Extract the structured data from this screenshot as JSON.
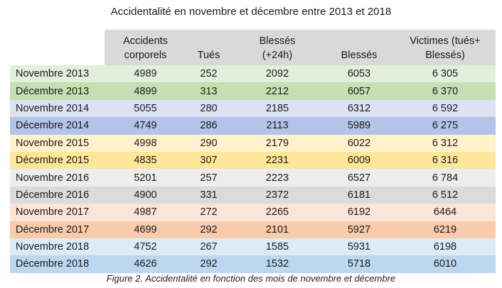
{
  "title": "Accidentalité en novembre et décembre entre 2013 et 2018",
  "headers": {
    "accidents": [
      "Accidents",
      "corporels"
    ],
    "tues": "Tués",
    "blesses24": [
      "Blessés",
      "(+24h)"
    ],
    "blesses": "Blessés",
    "victimes": [
      "Victimes (tués+",
      "Blessés)"
    ]
  },
  "rows": [
    {
      "label": "Novembre 2013",
      "accidents": "4989",
      "tues": "252",
      "blesses24": "2092",
      "blesses": "6053",
      "victimes": "6 305",
      "color": "#e2efda"
    },
    {
      "label": "Décembre 2013",
      "accidents": "4899",
      "tues": "313",
      "blesses24": "2212",
      "blesses": "6057",
      "victimes": "6 370",
      "color": "#c6e0b4"
    },
    {
      "label": "Novembre 2014",
      "accidents": "5055",
      "tues": "280",
      "blesses24": "2185",
      "blesses": "6312",
      "victimes": "6 592",
      "color": "#dde1f3"
    },
    {
      "label": "Décembre 2014",
      "accidents": "4749",
      "tues": "286",
      "blesses24": "2113",
      "blesses": "5989",
      "victimes": "6 275",
      "color": "#b4c3e8"
    },
    {
      "label": "Novembre 2015",
      "accidents": "4998",
      "tues": "290",
      "blesses24": "2179",
      "blesses": "6022",
      "victimes": "6 312",
      "color": "#fff2cc"
    },
    {
      "label": "Décembre 2015",
      "accidents": "4835",
      "tues": "307",
      "blesses24": "2231",
      "blesses": "6009",
      "victimes": "6 316",
      "color": "#ffe699"
    },
    {
      "label": "Novembre 2016",
      "accidents": "5201",
      "tues": "257",
      "blesses24": "2223",
      "blesses": "6527",
      "victimes": "6 784",
      "color": "#ededed"
    },
    {
      "label": "Décembre 2016",
      "accidents": "4900",
      "tues": "331",
      "blesses24": "2372",
      "blesses": "6181",
      "victimes": "6 512",
      "color": "#dbdbdb"
    },
    {
      "label": "Novembre 2017",
      "accidents": "4987",
      "tues": "272",
      "blesses24": "2265",
      "blesses": "6192",
      "victimes": "6464",
      "color": "#fce4d6"
    },
    {
      "label": "Décembre 2017",
      "accidents": "4699",
      "tues": "292",
      "blesses24": "2101",
      "blesses": "5927",
      "victimes": "6219",
      "color": "#f8cbad"
    },
    {
      "label": "Novembre 2018",
      "accidents": "4752",
      "tues": "267",
      "blesses24": "1585",
      "blesses": "5931",
      "victimes": "6198",
      "color": "#ddebf7"
    },
    {
      "label": "Décembre 2018",
      "accidents": "4626",
      "tues": "292",
      "blesses24": "1532",
      "blesses": "5718",
      "victimes": "6010",
      "color": "#bdd7ee"
    }
  ],
  "caption": "Figure 2. Accidentalité en fonction des mois de novembre et décembre"
}
